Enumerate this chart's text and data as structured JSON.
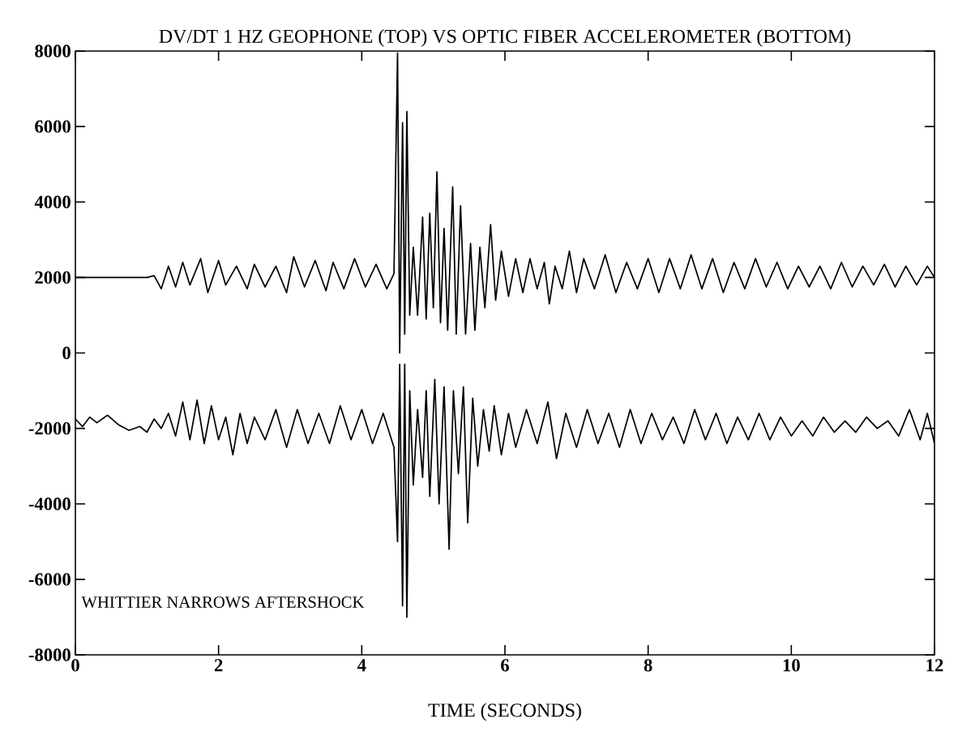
{
  "chart_data": {
    "type": "line",
    "title": "DV/DT 1 HZ GEOPHONE (TOP) VS OPTIC FIBER ACCELEROMETER (BOTTOM)",
    "xlabel": "TIME (SECONDS)",
    "annotations": [
      "WHITTIER NARROWS AFTERSHOCK"
    ],
    "xlim": [
      0,
      12
    ],
    "ylim": [
      -8000,
      8000
    ],
    "xticks": [
      0,
      2,
      4,
      6,
      8,
      10,
      12
    ],
    "yticks": [
      -8000,
      -6000,
      -4000,
      -2000,
      0,
      2000,
      4000,
      6000,
      8000
    ],
    "grid": false,
    "marker": "none",
    "line_style": "solid",
    "series": [
      {
        "color": "#000000",
        "x": [
          0,
          1.0,
          1.1,
          1.2,
          1.3,
          1.4,
          1.5,
          1.6,
          1.75,
          1.85,
          2.0,
          2.1,
          2.25,
          2.4,
          2.5,
          2.65,
          2.8,
          2.95,
          3.05,
          3.2,
          3.35,
          3.5,
          3.6,
          3.75,
          3.9,
          4.05,
          4.2,
          4.35,
          4.45,
          4.5,
          4.53,
          4.57,
          4.6,
          4.63,
          4.67,
          4.72,
          4.78,
          4.85,
          4.9,
          4.95,
          5.0,
          5.05,
          5.1,
          5.15,
          5.2,
          5.27,
          5.32,
          5.38,
          5.45,
          5.52,
          5.58,
          5.65,
          5.72,
          5.8,
          5.87,
          5.95,
          6.05,
          6.15,
          6.25,
          6.35,
          6.45,
          6.55,
          6.62,
          6.7,
          6.8,
          6.9,
          7.0,
          7.1,
          7.25,
          7.4,
          7.55,
          7.7,
          7.85,
          8.0,
          8.15,
          8.3,
          8.45,
          8.6,
          8.75,
          8.9,
          9.05,
          9.2,
          9.35,
          9.5,
          9.65,
          9.8,
          9.95,
          10.1,
          10.25,
          10.4,
          10.55,
          10.7,
          10.85,
          11.0,
          11.15,
          11.3,
          11.45,
          11.6,
          11.75,
          11.9,
          12.0
        ],
        "values": [
          2000,
          2000,
          2050,
          1700,
          2300,
          1750,
          2400,
          1800,
          2500,
          1600,
          2450,
          1800,
          2300,
          1700,
          2350,
          1750,
          2300,
          1600,
          2550,
          1750,
          2450,
          1650,
          2400,
          1700,
          2500,
          1750,
          2350,
          1700,
          2100,
          7950,
          0,
          6100,
          500,
          6400,
          1000,
          2800,
          1000,
          3600,
          900,
          3700,
          1200,
          4800,
          800,
          3300,
          600,
          4400,
          500,
          3900,
          500,
          2900,
          600,
          2800,
          1200,
          3400,
          1400,
          2700,
          1500,
          2500,
          1600,
          2500,
          1700,
          2400,
          1300,
          2300,
          1700,
          2700,
          1600,
          2500,
          1700,
          2600,
          1600,
          2400,
          1700,
          2500,
          1600,
          2500,
          1700,
          2600,
          1700,
          2500,
          1600,
          2400,
          1700,
          2500,
          1750,
          2400,
          1700,
          2300,
          1750,
          2300,
          1700,
          2400,
          1750,
          2300,
          1800,
          2350,
          1750,
          2300,
          1800,
          2300,
          2000
        ]
      },
      {
        "color": "#000000",
        "x": [
          0,
          0.1,
          0.2,
          0.3,
          0.45,
          0.6,
          0.75,
          0.9,
          1.0,
          1.1,
          1.2,
          1.3,
          1.4,
          1.5,
          1.6,
          1.7,
          1.8,
          1.9,
          2.0,
          2.1,
          2.2,
          2.3,
          2.4,
          2.5,
          2.65,
          2.8,
          2.95,
          3.1,
          3.25,
          3.4,
          3.55,
          3.7,
          3.85,
          4.0,
          4.15,
          4.3,
          4.45,
          4.5,
          4.53,
          4.57,
          4.6,
          4.63,
          4.67,
          4.72,
          4.78,
          4.85,
          4.9,
          4.95,
          5.02,
          5.08,
          5.15,
          5.22,
          5.28,
          5.35,
          5.42,
          5.48,
          5.55,
          5.62,
          5.7,
          5.78,
          5.85,
          5.95,
          6.05,
          6.15,
          6.3,
          6.45,
          6.6,
          6.72,
          6.85,
          7.0,
          7.15,
          7.3,
          7.45,
          7.6,
          7.75,
          7.9,
          8.05,
          8.2,
          8.35,
          8.5,
          8.65,
          8.8,
          8.95,
          9.1,
          9.25,
          9.4,
          9.55,
          9.7,
          9.85,
          10.0,
          10.15,
          10.3,
          10.45,
          10.6,
          10.75,
          10.9,
          11.05,
          11.2,
          11.35,
          11.5,
          11.65,
          11.8,
          11.9,
          12.0
        ],
        "values": [
          -1750,
          -1950,
          -1700,
          -1850,
          -1650,
          -1900,
          -2050,
          -1950,
          -2100,
          -1750,
          -2000,
          -1600,
          -2200,
          -1300,
          -2300,
          -1250,
          -2400,
          -1400,
          -2300,
          -1700,
          -2700,
          -1600,
          -2400,
          -1700,
          -2300,
          -1500,
          -2500,
          -1500,
          -2400,
          -1600,
          -2400,
          -1400,
          -2300,
          -1500,
          -2400,
          -1600,
          -2500,
          -5000,
          -300,
          -6700,
          -300,
          -7000,
          -1000,
          -3500,
          -1500,
          -3300,
          -1000,
          -3800,
          -700,
          -4000,
          -900,
          -5200,
          -1000,
          -3200,
          -900,
          -4500,
          -1200,
          -3000,
          -1500,
          -2600,
          -1400,
          -2700,
          -1600,
          -2500,
          -1500,
          -2400,
          -1300,
          -2800,
          -1600,
          -2500,
          -1500,
          -2400,
          -1600,
          -2500,
          -1500,
          -2400,
          -1600,
          -2300,
          -1700,
          -2400,
          -1500,
          -2300,
          -1600,
          -2400,
          -1700,
          -2300,
          -1600,
          -2300,
          -1700,
          -2200,
          -1800,
          -2200,
          -1700,
          -2100,
          -1800,
          -2100,
          -1700,
          -2000,
          -1800,
          -2200,
          -1500,
          -2300,
          -1600,
          -2400
        ]
      }
    ]
  }
}
